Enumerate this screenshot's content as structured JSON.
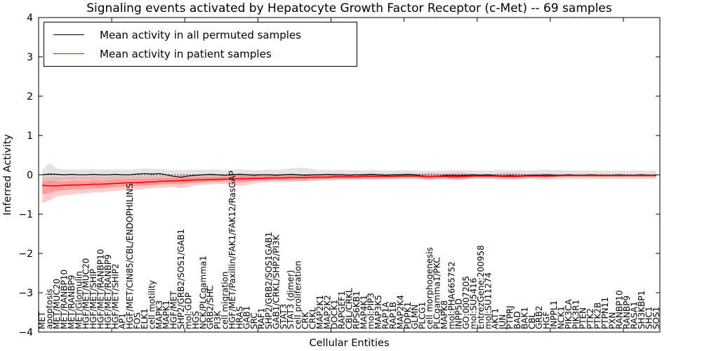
{
  "title": "Signaling events activated by Hepatocyte Growth Factor Receptor (c-Met) -- 69 samples",
  "legend": {
    "items": [
      {
        "label": "Mean activity in all permuted samples",
        "color": "#000000"
      },
      {
        "label": "Mean activity in patient samples",
        "color": "#ff0000"
      }
    ]
  },
  "axes": {
    "xlabel": "Cellular Entities",
    "ylabel": "Inferred Activity"
  },
  "chart_data": {
    "type": "line",
    "title": "Signaling events activated by Hepatocyte Growth Factor Receptor (c-Met) -- 69 samples",
    "xlabel": "Cellular Entities",
    "ylabel": "Inferred Activity",
    "ylim": [
      -4,
      4
    ],
    "yticks": [
      -4,
      -3,
      -2,
      -1,
      0,
      1,
      2,
      3,
      4
    ],
    "grid": false,
    "legend_position": "upper left",
    "zero_line": true,
    "categories": [
      "MET",
      "apoptosis",
      "MET/MUC20",
      "MET/RANBP10",
      "MET/RANBP9",
      "MET/Glomulin",
      "HGF/MET/MUC20",
      "HGF/MET/SHIP",
      "HGF/MET/RANBP10",
      "HGF/MET/RANBP9",
      "HGF/MET/SHIP2",
      "AP1",
      "HGF/MET/CIN85/CBL/ENDOPHILINS",
      "FOS",
      "ELK1",
      "cell motility",
      "MAPK3",
      "MAPK1",
      "HGF/MET",
      "SHP2/GRB2/SOS1/GAB1",
      "mol:GDP",
      "HGS",
      "NCK/PLCgamma1",
      "GRB2/SHC",
      "PI3K",
      "cell migration",
      "HGF/MET/Paxillin/FAK1/FAK12/RasGAP",
      "HRAS",
      "GAB1",
      "SRC",
      "RAF1",
      "SHP2/GRB2/SOS1GAB1",
      "GAB1/CRKL/SHP2/PI3K",
      "STAT3",
      "STAT3 (dimer)",
      "cell proliferation",
      "CRK",
      "CRKL",
      "MAP2K1",
      "MAP2K2",
      "DOCK1",
      "RAPGEF1",
      "CBL/CRKL",
      "RPS6KB1",
      "MAP4K1",
      "mol:PIP3",
      "MAP3K5",
      "RAP1A",
      "RAP1B",
      "MAP2K4",
      "PDPK1",
      "GLMN",
      "PLCG1",
      "cell morphogenesis",
      "PLCgamma1/PKC",
      "MAPK8",
      "mol:PHA665752",
      "INPP5D",
      "GO:0007205",
      "mol:SU5416",
      "EntrezGene:200958",
      "mol:SU11274",
      "AKT1",
      "JUN",
      "PTPRJ",
      "BAD",
      "BAK1",
      "CBL",
      "GRB2",
      "HGF",
      "INPPL1",
      "NCK1",
      "PIK3CA",
      "PIK3R1",
      "PTEN",
      "PTK2",
      "PTK2B",
      "PTPN11",
      "PXN",
      "RANBP10",
      "RANBP9",
      "RASA1",
      "SH3KBP1",
      "SHC1",
      "SOS1"
    ],
    "series": [
      {
        "name": "Mean activity in all permuted samples",
        "color": "#000000",
        "band_color": "#999999",
        "values": [
          0.0,
          0.02,
          0.01,
          0.0,
          0.01,
          0.0,
          0.0,
          0.01,
          0.0,
          0.0,
          0.01,
          0.0,
          0.0,
          0.02,
          0.03,
          0.02,
          0.03,
          0.0,
          -0.04,
          -0.06,
          -0.03,
          -0.01,
          0.0,
          0.01,
          0.0,
          -0.01,
          0.0,
          0.01,
          0.0,
          -0.01,
          0.0,
          0.0,
          -0.01,
          0.0,
          0.01,
          0.0,
          -0.01,
          0.0,
          0.0,
          0.01,
          0.0,
          0.0,
          -0.01,
          0.0,
          0.0,
          0.01,
          0.0,
          -0.01,
          0.0,
          0.0,
          0.01,
          0.0,
          -0.03,
          -0.05,
          -0.04,
          -0.02,
          -0.01,
          -0.02,
          -0.01,
          0.0,
          -0.01,
          0.0,
          -0.02,
          -0.03,
          -0.02,
          -0.03,
          -0.02,
          -0.01,
          -0.01,
          0.0,
          -0.01,
          -0.01,
          0.0,
          -0.01,
          -0.01,
          0.0,
          -0.01,
          -0.01,
          -0.01,
          0.0,
          -0.01,
          -0.01,
          0.0,
          -0.01,
          -0.01
        ],
        "band_upper": [
          0.12,
          0.3,
          0.16,
          0.14,
          0.13,
          0.14,
          0.13,
          0.14,
          0.13,
          0.13,
          0.14,
          0.13,
          0.13,
          0.15,
          0.16,
          0.15,
          0.15,
          0.13,
          0.12,
          0.12,
          0.12,
          0.13,
          0.13,
          0.14,
          0.13,
          0.12,
          0.13,
          0.14,
          0.12,
          0.12,
          0.12,
          0.13,
          0.12,
          0.14,
          0.16,
          0.18,
          0.17,
          0.15,
          0.13,
          0.13,
          0.12,
          0.12,
          0.12,
          0.12,
          0.11,
          0.12,
          0.11,
          0.11,
          0.11,
          0.11,
          0.11,
          0.11,
          0.1,
          0.1,
          0.1,
          0.11,
          0.12,
          0.12,
          0.12,
          0.11,
          0.11,
          0.11,
          0.11,
          0.12,
          0.11,
          0.12,
          0.11,
          0.11,
          0.13,
          0.13,
          0.12,
          0.12,
          0.11,
          0.11,
          0.11,
          0.11,
          0.11,
          0.11,
          0.11,
          0.11,
          0.11,
          0.11,
          0.11,
          0.11,
          0.11
        ],
        "band_lower": [
          -0.14,
          -0.2,
          -0.16,
          -0.14,
          -0.13,
          -0.14,
          -0.13,
          -0.14,
          -0.13,
          -0.13,
          -0.14,
          -0.13,
          -0.13,
          -0.14,
          -0.13,
          -0.13,
          -0.13,
          -0.14,
          -0.16,
          -0.17,
          -0.15,
          -0.13,
          -0.13,
          -0.13,
          -0.13,
          -0.13,
          -0.13,
          -0.13,
          -0.13,
          -0.13,
          -0.12,
          -0.13,
          -0.13,
          -0.14,
          -0.16,
          -0.18,
          -0.17,
          -0.15,
          -0.13,
          -0.13,
          -0.12,
          -0.12,
          -0.12,
          -0.12,
          -0.11,
          -0.12,
          -0.11,
          -0.11,
          -0.11,
          -0.11,
          -0.11,
          -0.11,
          -0.12,
          -0.13,
          -0.12,
          -0.11,
          -0.11,
          -0.12,
          -0.12,
          -0.11,
          -0.11,
          -0.11,
          -0.11,
          -0.12,
          -0.11,
          -0.12,
          -0.11,
          -0.11,
          -0.13,
          -0.13,
          -0.12,
          -0.12,
          -0.11,
          -0.11,
          -0.11,
          -0.11,
          -0.11,
          -0.11,
          -0.11,
          -0.11,
          -0.11,
          -0.11,
          -0.11,
          -0.11,
          -0.11
        ]
      },
      {
        "name": "Mean activity in patient samples",
        "color": "#ff0000",
        "band_color": "#ff3333",
        "values": [
          -0.27,
          -0.28,
          -0.28,
          -0.27,
          -0.26,
          -0.26,
          -0.25,
          -0.24,
          -0.24,
          -0.23,
          -0.22,
          -0.21,
          -0.2,
          -0.2,
          -0.19,
          -0.18,
          -0.17,
          -0.16,
          -0.16,
          -0.15,
          -0.14,
          -0.13,
          -0.13,
          -0.12,
          -0.12,
          -0.11,
          -0.11,
          -0.1,
          -0.1,
          -0.09,
          -0.09,
          -0.08,
          -0.08,
          -0.08,
          -0.07,
          -0.07,
          -0.07,
          -0.06,
          -0.06,
          -0.06,
          -0.05,
          -0.05,
          -0.05,
          -0.05,
          -0.04,
          -0.04,
          -0.04,
          -0.04,
          -0.04,
          -0.03,
          -0.03,
          -0.03,
          -0.04,
          -0.05,
          -0.04,
          -0.04,
          -0.05,
          -0.05,
          -0.04,
          -0.03,
          -0.03,
          -0.03,
          -0.03,
          -0.04,
          -0.04,
          -0.04,
          -0.03,
          -0.03,
          -0.03,
          -0.03,
          -0.03,
          -0.02,
          -0.02,
          -0.02,
          -0.02,
          -0.02,
          -0.02,
          -0.02,
          -0.02,
          -0.02,
          -0.02,
          -0.02,
          -0.02,
          -0.02,
          -0.02
        ],
        "band_upper": [
          -0.05,
          -0.04,
          -0.05,
          -0.05,
          -0.04,
          -0.04,
          -0.04,
          -0.04,
          -0.04,
          -0.04,
          -0.03,
          -0.03,
          -0.03,
          -0.03,
          -0.03,
          -0.02,
          -0.02,
          -0.02,
          -0.02,
          0.0,
          0.0,
          0.0,
          0.0,
          0.0,
          0.0,
          0.01,
          0.02,
          0.04,
          0.03,
          0.02,
          0.02,
          0.02,
          0.02,
          0.02,
          0.02,
          0.02,
          0.02,
          0.02,
          0.02,
          0.02,
          0.03,
          0.03,
          0.02,
          0.02,
          0.03,
          0.03,
          0.03,
          0.02,
          0.02,
          0.03,
          0.03,
          0.03,
          0.04,
          0.05,
          0.04,
          0.03,
          0.05,
          0.06,
          0.04,
          0.02,
          0.02,
          0.02,
          0.02,
          0.04,
          0.05,
          0.04,
          0.02,
          0.02,
          0.03,
          0.03,
          0.02,
          0.02,
          0.02,
          0.02,
          0.02,
          0.02,
          0.02,
          0.02,
          0.02,
          0.02,
          0.02,
          0.02,
          0.02,
          0.02,
          0.02
        ],
        "band_lower": [
          -0.72,
          -0.65,
          -0.55,
          -0.52,
          -0.5,
          -0.48,
          -0.47,
          -0.45,
          -0.44,
          -0.42,
          -0.41,
          -0.39,
          -0.38,
          -0.37,
          -0.36,
          -0.34,
          -0.33,
          -0.32,
          -0.31,
          -0.34,
          -0.3,
          -0.26,
          -0.25,
          -0.24,
          -0.24,
          -0.23,
          -0.26,
          -0.28,
          -0.26,
          -0.22,
          -0.2,
          -0.19,
          -0.18,
          -0.18,
          -0.17,
          -0.16,
          -0.16,
          -0.15,
          -0.14,
          -0.14,
          -0.13,
          -0.13,
          -0.12,
          -0.12,
          -0.11,
          -0.11,
          -0.11,
          -0.1,
          -0.1,
          -0.09,
          -0.09,
          -0.09,
          -0.11,
          -0.13,
          -0.11,
          -0.1,
          -0.13,
          -0.14,
          -0.11,
          -0.08,
          -0.08,
          -0.08,
          -0.08,
          -0.1,
          -0.11,
          -0.1,
          -0.08,
          -0.07,
          -0.08,
          -0.08,
          -0.07,
          -0.07,
          -0.06,
          -0.06,
          -0.06,
          -0.06,
          -0.06,
          -0.06,
          -0.06,
          -0.06,
          -0.06,
          -0.06,
          -0.06,
          -0.06,
          -0.06
        ]
      }
    ]
  }
}
